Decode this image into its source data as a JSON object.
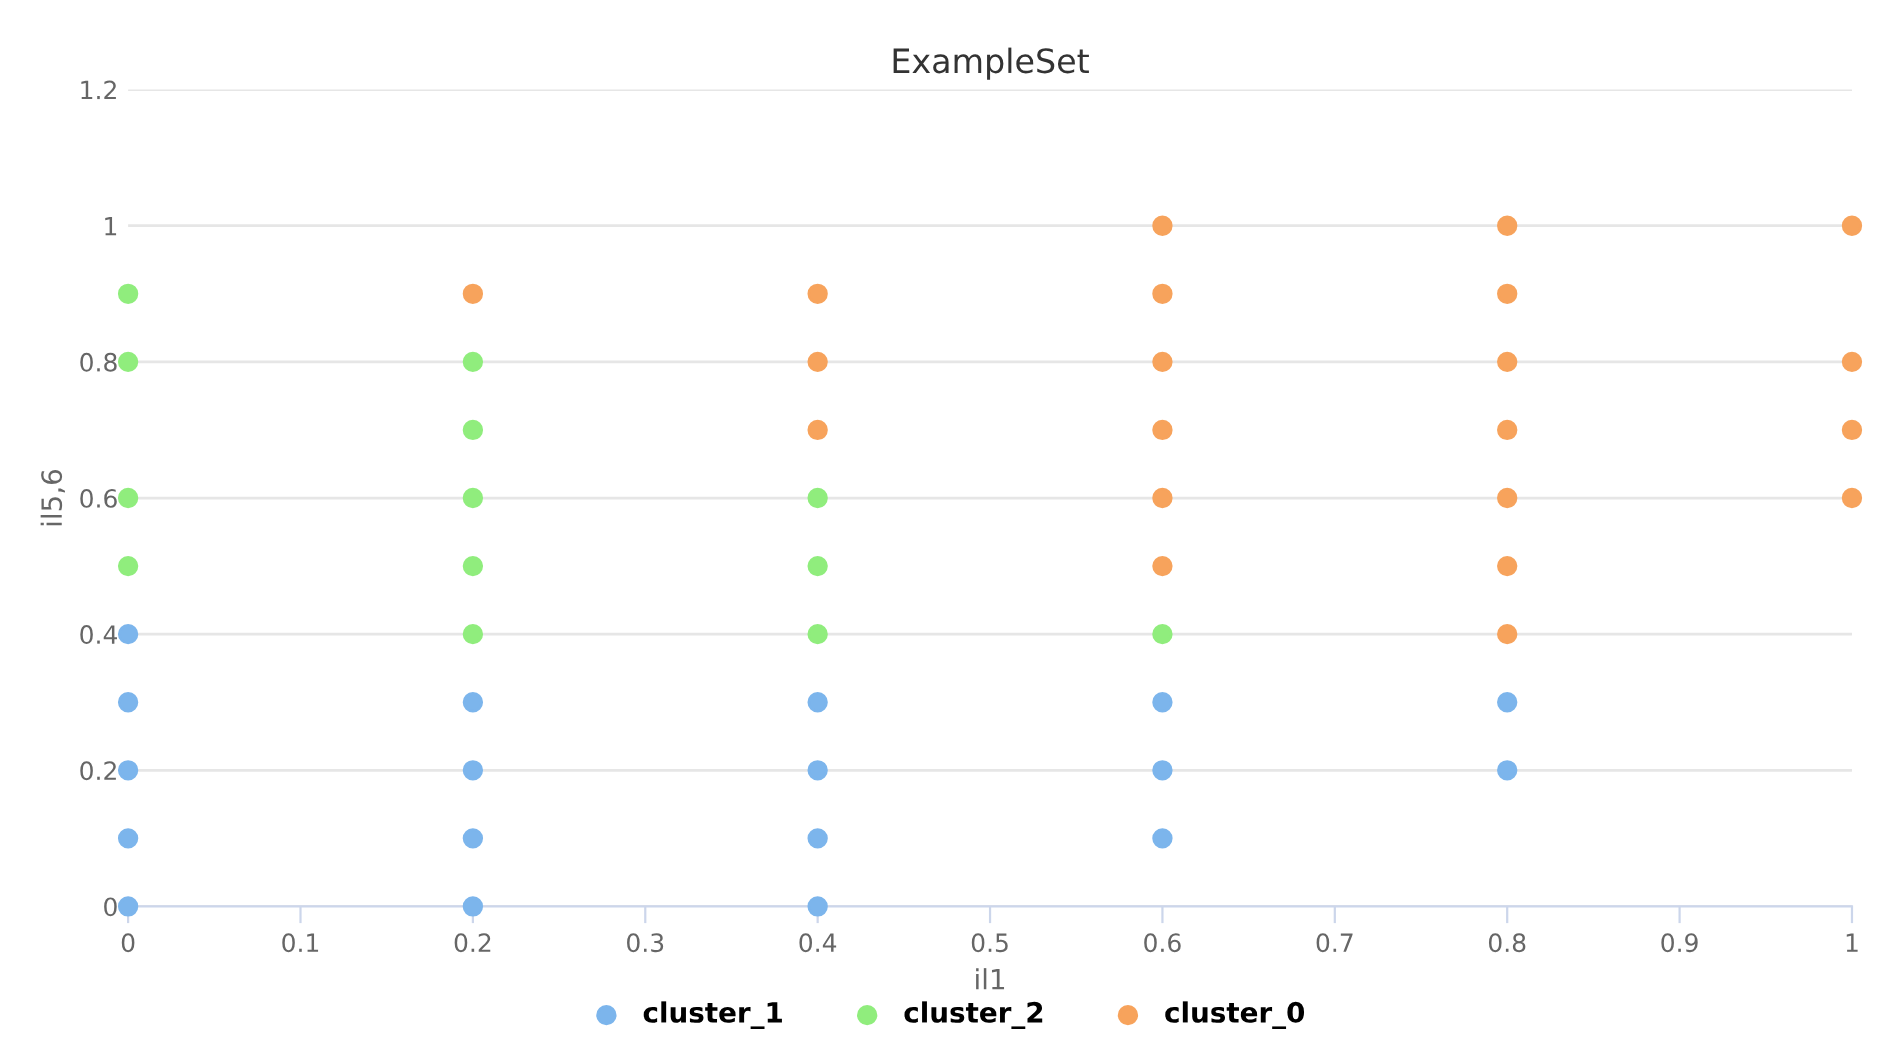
{
  "chart_data": {
    "type": "scatter",
    "title": "ExampleSet",
    "xlabel": "il1",
    "ylabel": "il5,6",
    "xlim": [
      0,
      1
    ],
    "xticks": [
      0,
      0.1,
      0.2,
      0.3,
      0.4,
      0.5,
      0.6,
      0.7,
      0.8,
      0.9,
      1
    ],
    "ylim": [
      0,
      1.2
    ],
    "yticks": [
      0,
      0.2,
      0.4,
      0.6,
      0.8,
      1,
      1.2
    ],
    "grid": "y",
    "legend": "bottom",
    "marker": "circle",
    "series": [
      {
        "name": "cluster_1",
        "color": "#7cb5ec",
        "x": [
          0,
          0,
          0,
          0,
          0,
          0.2,
          0.2,
          0.2,
          0.2,
          0.4,
          0.4,
          0.4,
          0.4,
          0.6,
          0.6,
          0.6,
          0.8,
          0.8
        ],
        "values": [
          0.4,
          0.3,
          0.2,
          0.1,
          0,
          0.3,
          0.2,
          0.1,
          0,
          0.3,
          0.2,
          0.1,
          0,
          0.3,
          0.2,
          0.1,
          0.3,
          0.2
        ]
      },
      {
        "name": "cluster_2",
        "color": "#90ed7d",
        "x": [
          0,
          0,
          0,
          0,
          0.2,
          0.2,
          0.2,
          0.2,
          0.2,
          0.4,
          0.4,
          0.4,
          0.6
        ],
        "values": [
          0.9,
          0.8,
          0.6,
          0.5,
          0.8,
          0.7,
          0.6,
          0.5,
          0.4,
          0.6,
          0.5,
          0.4,
          0.4
        ]
      },
      {
        "name": "cluster_0",
        "color": "#f7a35c",
        "x": [
          0.2,
          0.4,
          0.4,
          0.4,
          0.6,
          0.6,
          0.6,
          0.6,
          0.6,
          0.6,
          0.8,
          0.8,
          0.8,
          0.8,
          0.8,
          0.8,
          0.8,
          1,
          1,
          1,
          1
        ],
        "values": [
          0.9,
          0.9,
          0.8,
          0.7,
          1,
          0.9,
          0.8,
          0.7,
          0.6,
          0.5,
          1,
          0.9,
          0.8,
          0.7,
          0.6,
          0.5,
          0.4,
          1,
          0.8,
          0.7,
          0.6
        ]
      }
    ]
  }
}
